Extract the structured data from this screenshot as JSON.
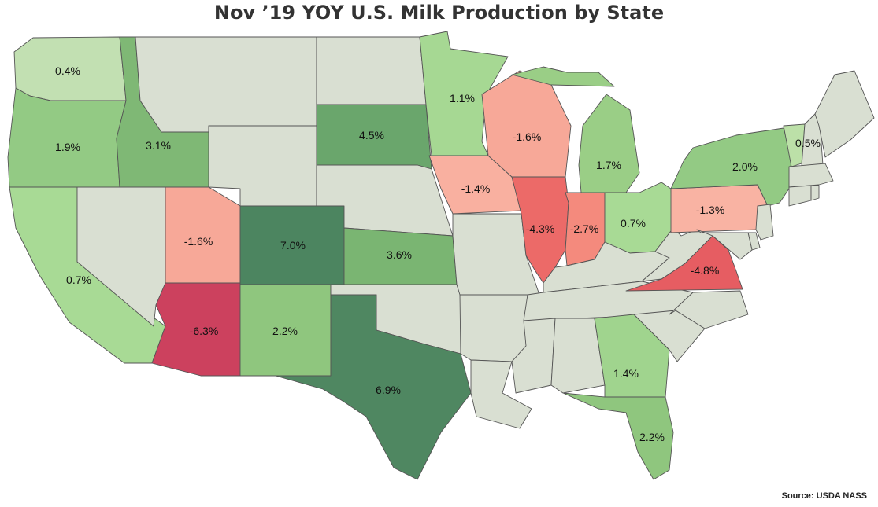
{
  "title": "Nov ’19 YOY U.S. Milk Production by State",
  "source": "Source: USDA NASS",
  "colors": {
    "no_data": "#d9dfd2",
    "border": "#555555"
  },
  "states": [
    {
      "id": "WA",
      "value": "0.4%",
      "color": "#c2e0b2"
    },
    {
      "id": "OR",
      "value": "1.9%",
      "color": "#93ca84"
    },
    {
      "id": "ID",
      "value": "3.1%",
      "color": "#7fb875"
    },
    {
      "id": "MT",
      "value": null,
      "color": "#d9dfd2"
    },
    {
      "id": "WY",
      "value": null,
      "color": "#d9dfd2"
    },
    {
      "id": "CA",
      "value": "0.7%",
      "color": "#a8da95"
    },
    {
      "id": "NV",
      "value": null,
      "color": "#d9dfd2"
    },
    {
      "id": "UT",
      "value": "-1.6%",
      "color": "#f7a898"
    },
    {
      "id": "AZ",
      "value": "-6.3%",
      "color": "#cc415e"
    },
    {
      "id": "CO",
      "value": "7.0%",
      "color": "#4c8560"
    },
    {
      "id": "NM",
      "value": "2.2%",
      "color": "#8fc67e"
    },
    {
      "id": "ND",
      "value": null,
      "color": "#d9dfd2"
    },
    {
      "id": "SD",
      "value": "4.5%",
      "color": "#6aa66c"
    },
    {
      "id": "NE",
      "value": null,
      "color": "#d9dfd2"
    },
    {
      "id": "KS",
      "value": "3.6%",
      "color": "#7ab572"
    },
    {
      "id": "OK",
      "value": null,
      "color": "#d9dfd2"
    },
    {
      "id": "TX",
      "value": "6.9%",
      "color": "#4f8761"
    },
    {
      "id": "MN",
      "value": "1.1%",
      "color": "#a6d893"
    },
    {
      "id": "IA",
      "value": "-1.4%",
      "color": "#f9b0a0"
    },
    {
      "id": "MO",
      "value": null,
      "color": "#d9dfd2"
    },
    {
      "id": "AR",
      "value": null,
      "color": "#d9dfd2"
    },
    {
      "id": "LA",
      "value": null,
      "color": "#d9dfd2"
    },
    {
      "id": "WI",
      "value": "-1.6%",
      "color": "#f7a898"
    },
    {
      "id": "IL",
      "value": "-4.3%",
      "color": "#ec6a68"
    },
    {
      "id": "MI",
      "value": "1.7%",
      "color": "#9ace86"
    },
    {
      "id": "IN",
      "value": "-2.7%",
      "color": "#f48a7d"
    },
    {
      "id": "OH",
      "value": "0.7%",
      "color": "#a8da95"
    },
    {
      "id": "KY",
      "value": null,
      "color": "#d9dfd2"
    },
    {
      "id": "TN",
      "value": null,
      "color": "#d9dfd2"
    },
    {
      "id": "MS",
      "value": null,
      "color": "#d9dfd2"
    },
    {
      "id": "AL",
      "value": null,
      "color": "#d9dfd2"
    },
    {
      "id": "GA",
      "value": "1.4%",
      "color": "#a0d48e"
    },
    {
      "id": "FL",
      "value": "2.2%",
      "color": "#8fc67e"
    },
    {
      "id": "SC",
      "value": null,
      "color": "#d9dfd2"
    },
    {
      "id": "NC",
      "value": null,
      "color": "#d9dfd2"
    },
    {
      "id": "VA",
      "value": "-4.8%",
      "color": "#e65d62"
    },
    {
      "id": "WV",
      "value": null,
      "color": "#d9dfd2"
    },
    {
      "id": "PA",
      "value": "-1.3%",
      "color": "#f9b3a3"
    },
    {
      "id": "NY",
      "value": "2.0%",
      "color": "#93ca84"
    },
    {
      "id": "VT",
      "value": "0.5%",
      "color": "#bce0a8"
    },
    {
      "id": "NH",
      "value": null,
      "color": "#d9dfd2"
    },
    {
      "id": "ME",
      "value": null,
      "color": "#d9dfd2"
    },
    {
      "id": "MA",
      "value": null,
      "color": "#d9dfd2"
    },
    {
      "id": "CT",
      "value": null,
      "color": "#d9dfd2"
    },
    {
      "id": "RI",
      "value": null,
      "color": "#d9dfd2"
    },
    {
      "id": "NJ",
      "value": null,
      "color": "#d9dfd2"
    },
    {
      "id": "DE",
      "value": null,
      "color": "#d9dfd2"
    },
    {
      "id": "MD",
      "value": null,
      "color": "#d9dfd2"
    }
  ]
}
